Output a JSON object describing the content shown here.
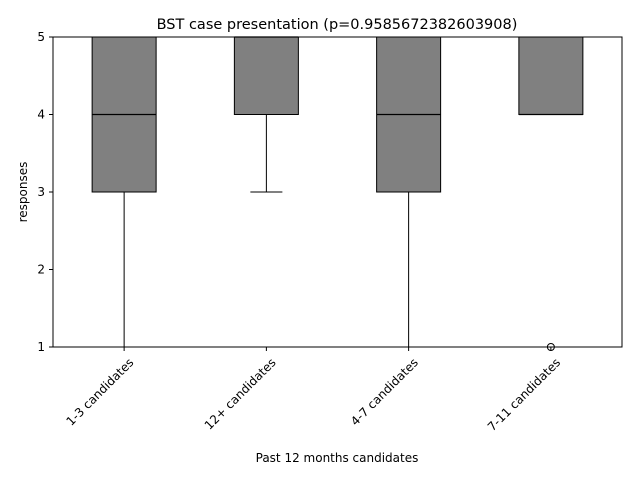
{
  "chart_data": {
    "type": "box",
    "title": "BST case presentation (p=0.9585672382603908)",
    "xlabel": "Past 12 months candidates",
    "ylabel": "responses",
    "ylim": [
      1,
      5
    ],
    "yticks": [
      1,
      2,
      3,
      4,
      5
    ],
    "ytick_labels": [
      "1",
      "2",
      "3",
      "4",
      "5"
    ],
    "categories": [
      "1-3 candidates",
      "12+ candidates",
      "4-7 candidates",
      "7-11 candidates"
    ],
    "boxes": [
      {
        "category": "1-3 candidates",
        "q1": 3,
        "median": 4,
        "q3": 5,
        "whisker_low": 1,
        "whisker_high": 5,
        "fliers": []
      },
      {
        "category": "12+ candidates",
        "q1": 4,
        "median": 5,
        "q3": 5,
        "whisker_low": 3,
        "whisker_high": 5,
        "fliers": []
      },
      {
        "category": "4-7 candidates",
        "q1": 3,
        "median": 4,
        "q3": 5,
        "whisker_low": 1,
        "whisker_high": 5,
        "fliers": []
      },
      {
        "category": "7-11 candidates",
        "q1": 4,
        "median": 4,
        "q3": 5,
        "whisker_low": 4,
        "whisker_high": 5,
        "fliers": [
          1
        ]
      }
    ],
    "grid": false,
    "box_color": "#808080",
    "line_color": "#000000"
  }
}
